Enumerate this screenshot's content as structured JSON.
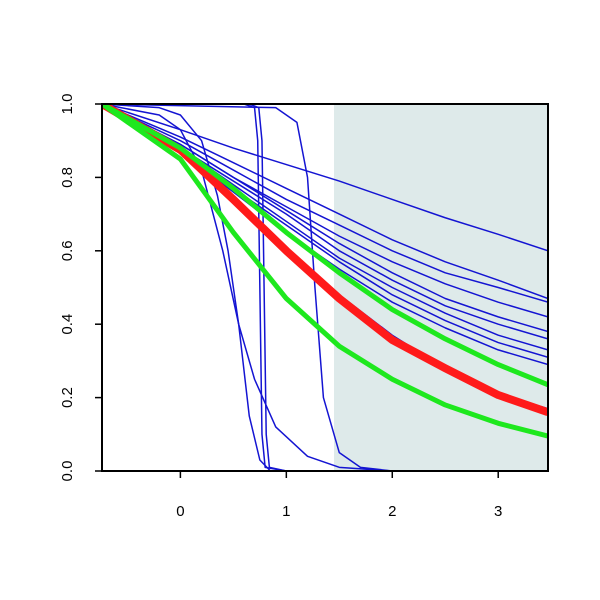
{
  "chart_data": {
    "type": "line",
    "xlim": [
      -0.74,
      3.47
    ],
    "ylim": [
      0,
      1
    ],
    "xticks": [
      0,
      1,
      2,
      3
    ],
    "yticks": [
      {
        "value": 0,
        "label": "0.0"
      },
      {
        "value": 0.2,
        "label": "0.2"
      },
      {
        "value": 0.4,
        "label": "0.4"
      },
      {
        "value": 0.6,
        "label": "0.6"
      },
      {
        "value": 0.8,
        "label": "0.8"
      },
      {
        "value": 1,
        "label": "1.0"
      }
    ],
    "shaded_region": {
      "x": [
        1.45,
        3.47
      ],
      "color": "#deeaea"
    },
    "series": [
      {
        "color": "#1414d2",
        "width": 1.5,
        "x": [
          -0.74,
          0,
          0.5,
          1,
          1.5,
          2,
          2.5,
          3,
          3.47
        ],
        "values": [
          1,
          0.93,
          0.88,
          0.835,
          0.79,
          0.74,
          0.69,
          0.645,
          0.6
        ]
      },
      {
        "color": "#1414d2",
        "width": 1.5,
        "x": [
          -0.74,
          0,
          0.5,
          1,
          1.5,
          2,
          2.5,
          3,
          3.47
        ],
        "values": [
          1,
          0.91,
          0.84,
          0.77,
          0.7,
          0.63,
          0.57,
          0.52,
          0.47
        ]
      },
      {
        "color": "#1414d2",
        "width": 1.5,
        "x": [
          -0.74,
          0,
          0.5,
          1,
          1.5,
          2,
          2.5,
          3,
          3.47
        ],
        "values": [
          1,
          0.9,
          0.82,
          0.74,
          0.67,
          0.6,
          0.54,
          0.5,
          0.46
        ]
      },
      {
        "color": "#1414d2",
        "width": 1.5,
        "x": [
          -0.74,
          0,
          0.5,
          1,
          1.5,
          2,
          2.5,
          3,
          3.47
        ],
        "values": [
          1,
          0.89,
          0.8,
          0.72,
          0.64,
          0.57,
          0.51,
          0.46,
          0.42
        ]
      },
      {
        "color": "#1414d2",
        "width": 1.5,
        "x": [
          -0.74,
          0,
          0.5,
          1,
          1.5,
          2,
          2.5,
          3,
          3.47
        ],
        "values": [
          1,
          0.89,
          0.8,
          0.71,
          0.62,
          0.54,
          0.47,
          0.42,
          0.38
        ]
      },
      {
        "color": "#1414d2",
        "width": 1.5,
        "x": [
          -0.74,
          0,
          0.5,
          1,
          1.5,
          2,
          2.5,
          3,
          3.47
        ],
        "values": [
          1,
          0.88,
          0.79,
          0.7,
          0.6,
          0.52,
          0.45,
          0.4,
          0.36
        ]
      },
      {
        "color": "#1414d2",
        "width": 1.5,
        "x": [
          -0.74,
          0,
          0.5,
          1,
          1.5,
          2,
          2.5,
          3,
          3.47
        ],
        "values": [
          1,
          0.88,
          0.78,
          0.68,
          0.58,
          0.5,
          0.43,
          0.37,
          0.33
        ]
      },
      {
        "color": "#1414d2",
        "width": 1.5,
        "x": [
          -0.74,
          0,
          0.5,
          1,
          1.5,
          2,
          2.5,
          3,
          3.47
        ],
        "values": [
          1,
          0.87,
          0.77,
          0.67,
          0.57,
          0.48,
          0.41,
          0.35,
          0.31
        ]
      },
      {
        "color": "#1414d2",
        "width": 1.5,
        "x": [
          -0.74,
          0,
          0.5,
          1,
          1.5,
          2,
          2.5,
          3,
          3.47
        ],
        "values": [
          1,
          0.87,
          0.76,
          0.65,
          0.55,
          0.46,
          0.39,
          0.33,
          0.29
        ]
      },
      {
        "color": "#1414d2",
        "width": 1.5,
        "x": [
          -0.74,
          0,
          0.5,
          1,
          1.5,
          2,
          2.5,
          3,
          3.47
        ],
        "values": [
          1,
          0.87,
          0.74,
          0.6,
          0.48,
          0.37,
          0.28,
          0.21,
          0.17
        ]
      },
      {
        "color": "#1414d2",
        "width": 1.5,
        "x": [
          -0.74,
          0.6,
          0.7,
          0.73,
          0.75,
          0.77,
          0.8,
          1,
          3.47
        ],
        "values": [
          1,
          1,
          0.99,
          0.9,
          0.5,
          0.1,
          0.01,
          0,
          0
        ]
      },
      {
        "color": "#1414d2",
        "width": 1.5,
        "x": [
          -0.74,
          0.65,
          0.74,
          0.77,
          0.79,
          0.81,
          0.84,
          1,
          3.47
        ],
        "values": [
          1,
          1,
          0.99,
          0.9,
          0.5,
          0.1,
          0.01,
          0,
          0
        ]
      },
      {
        "color": "#1414d2",
        "width": 1.5,
        "x": [
          -0.74,
          0.9,
          1.1,
          1.2,
          1.27,
          1.35,
          1.5,
          1.7,
          2,
          3.47
        ],
        "values": [
          1,
          0.99,
          0.95,
          0.8,
          0.5,
          0.2,
          0.05,
          0.01,
          0,
          0
        ]
      },
      {
        "color": "#1414d2",
        "width": 1.5,
        "x": [
          -0.74,
          -0.2,
          0,
          0.2,
          0.35,
          0.45,
          0.55,
          0.65,
          0.75,
          0.85,
          3.47
        ],
        "values": [
          1,
          0.99,
          0.97,
          0.9,
          0.75,
          0.6,
          0.4,
          0.15,
          0.03,
          0,
          0
        ]
      },
      {
        "color": "#1414d2",
        "width": 1.5,
        "x": [
          -0.74,
          -0.2,
          0,
          0.2,
          0.4,
          0.55,
          0.7,
          0.9,
          1.2,
          1.5,
          2,
          3.47
        ],
        "values": [
          1,
          0.97,
          0.93,
          0.82,
          0.6,
          0.4,
          0.25,
          0.12,
          0.04,
          0.01,
          0,
          0
        ]
      },
      {
        "color": "#ff1a1a",
        "width": 8,
        "x": [
          -0.74,
          0,
          0.5,
          1,
          1.5,
          2,
          2.5,
          3,
          3.47
        ],
        "values": [
          1,
          0.875,
          0.74,
          0.6,
          0.47,
          0.357,
          0.28,
          0.207,
          0.16
        ]
      },
      {
        "color": "#1ee81e",
        "width": 5,
        "x": [
          -0.74,
          0,
          0.5,
          1,
          1.5,
          2,
          2.5,
          3,
          3.47
        ],
        "values": [
          1,
          0.88,
          0.77,
          0.65,
          0.54,
          0.44,
          0.36,
          0.29,
          0.235
        ]
      },
      {
        "color": "#1ee81e",
        "width": 5,
        "x": [
          -0.74,
          0,
          0.5,
          1,
          1.5,
          2,
          2.5,
          3,
          3.47
        ],
        "values": [
          1,
          0.85,
          0.65,
          0.47,
          0.34,
          0.25,
          0.18,
          0.13,
          0.095
        ]
      }
    ]
  }
}
